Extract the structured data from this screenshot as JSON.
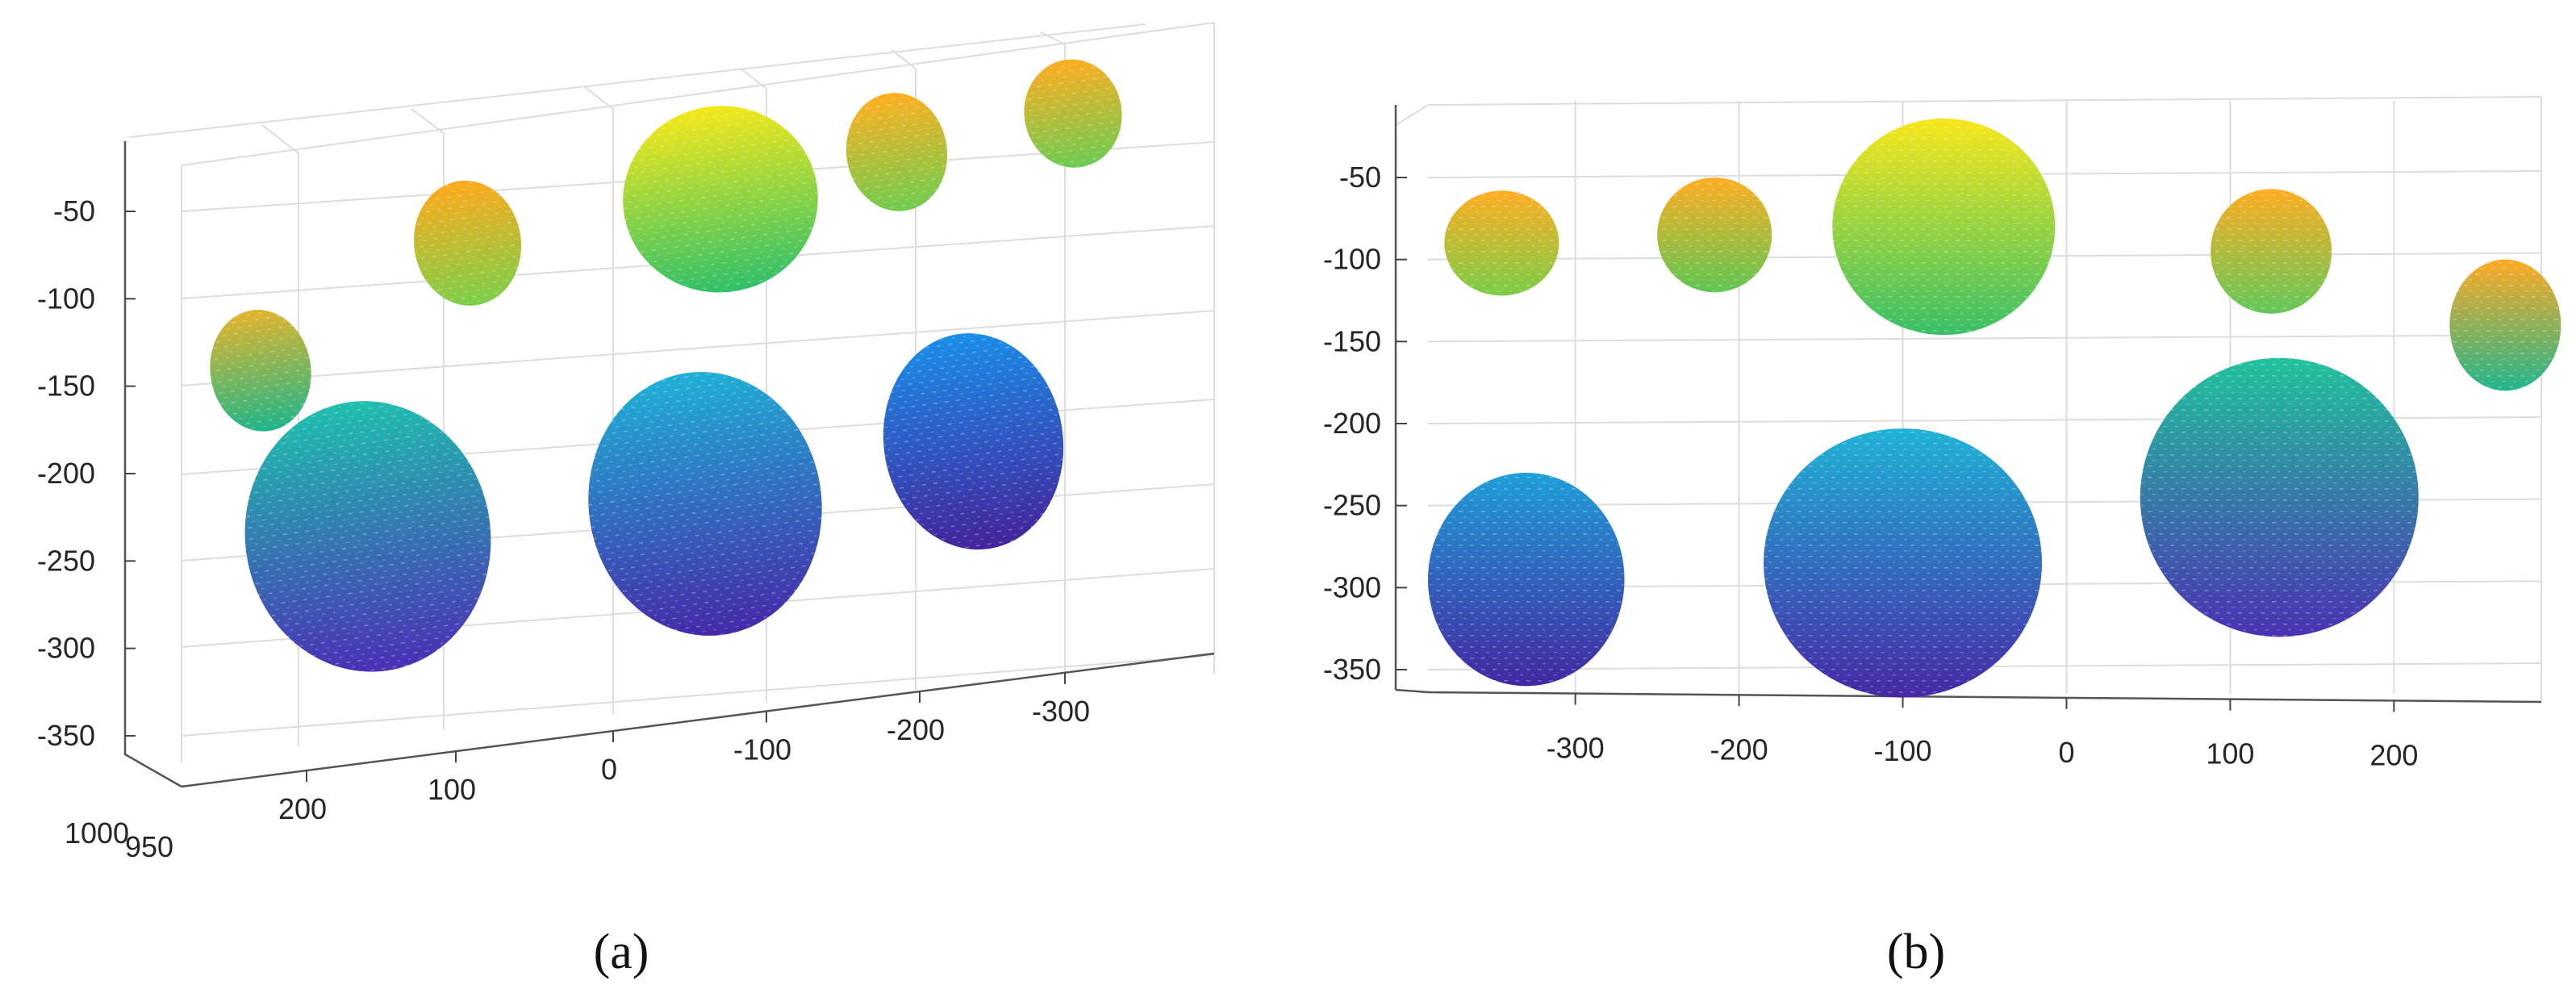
{
  "chart_data": [
    {
      "panel_label": "(a)",
      "type": "scatter",
      "subtype": "3d point cloud (oblique view)",
      "colormap": "parula (z-coded: purple → blue → teal → green → yellow)",
      "grid": true,
      "yticks": [
        "-50",
        "-100",
        "-150",
        "-200",
        "-250",
        "-300",
        "-350"
      ],
      "xticks": [
        "200",
        "100",
        "0",
        "-100",
        "-200",
        "-300"
      ],
      "depth_ticks": [
        "1000",
        "950"
      ],
      "ylim": [
        -370,
        -10
      ],
      "blobs": [
        {
          "x": 230,
          "y": -145,
          "rx": 32,
          "ry": 36,
          "color_top": "#e3b52c",
          "color_bottom": "#1fb58a"
        },
        {
          "x": 95,
          "y": -80,
          "rx": 34,
          "ry": 37,
          "color_top": "#ffaa1c",
          "color_bottom": "#7bcf4a"
        },
        {
          "x": -70,
          "y": -65,
          "rx": 62,
          "ry": 55,
          "color_top": "#f5e81a",
          "color_bottom": "#2fc06a"
        },
        {
          "x": -185,
          "y": -45,
          "rx": 32,
          "ry": 35,
          "color_top": "#ffb020",
          "color_bottom": "#6fcc4f"
        },
        {
          "x": -300,
          "y": -30,
          "rx": 31,
          "ry": 32,
          "color_top": "#ffad21",
          "color_bottom": "#6ccc53"
        },
        {
          "x": 160,
          "y": -245,
          "rx": 78,
          "ry": 80,
          "color_top": "#1fbfae",
          "color_bottom": "#4a2fb5"
        },
        {
          "x": -60,
          "y": -240,
          "rx": 74,
          "ry": 78,
          "color_top": "#1fb0d6",
          "color_bottom": "#4528a8"
        },
        {
          "x": -235,
          "y": -215,
          "rx": 57,
          "ry": 64,
          "color_top": "#1a8ee8",
          "color_bottom": "#44229b"
        }
      ]
    },
    {
      "panel_label": "(b)",
      "type": "scatter",
      "subtype": "3d point cloud (near-frontal view)",
      "colormap": "parula (z-coded: purple → blue → teal → green → yellow)",
      "grid": true,
      "yticks": [
        "-50",
        "-100",
        "-150",
        "-200",
        "-250",
        "-300",
        "-350"
      ],
      "xticks": [
        "-300",
        "-200",
        "-100",
        "0",
        "100",
        "200"
      ],
      "ylim": [
        -360,
        -20
      ],
      "xlim": [
        -390,
        290
      ],
      "blobs": [
        {
          "x": -345,
          "y": -90,
          "rx": 35,
          "ry": 32,
          "color_top": "#ffae22",
          "color_bottom": "#7bcc48"
        },
        {
          "x": -215,
          "y": -85,
          "rx": 35,
          "ry": 35,
          "color_top": "#ffae22",
          "color_bottom": "#5ec653"
        },
        {
          "x": -75,
          "y": -80,
          "rx": 68,
          "ry": 66,
          "color_top": "#f8e71b",
          "color_bottom": "#39bf67"
        },
        {
          "x": 125,
          "y": -95,
          "rx": 37,
          "ry": 38,
          "color_top": "#ffad22",
          "color_bottom": "#63c85a"
        },
        {
          "x": 268,
          "y": -140,
          "rx": 34,
          "ry": 40,
          "color_top": "#ffaa24",
          "color_bottom": "#22b58c"
        },
        {
          "x": -330,
          "y": -295,
          "rx": 60,
          "ry": 65,
          "color_top": "#1f9fd8",
          "color_bottom": "#4326a1"
        },
        {
          "x": -100,
          "y": -285,
          "rx": 85,
          "ry": 82,
          "color_top": "#1fb3d6",
          "color_bottom": "#4628a6"
        },
        {
          "x": 130,
          "y": -245,
          "rx": 85,
          "ry": 85,
          "color_top": "#21c39c",
          "color_bottom": "#4b31b2"
        }
      ]
    }
  ]
}
